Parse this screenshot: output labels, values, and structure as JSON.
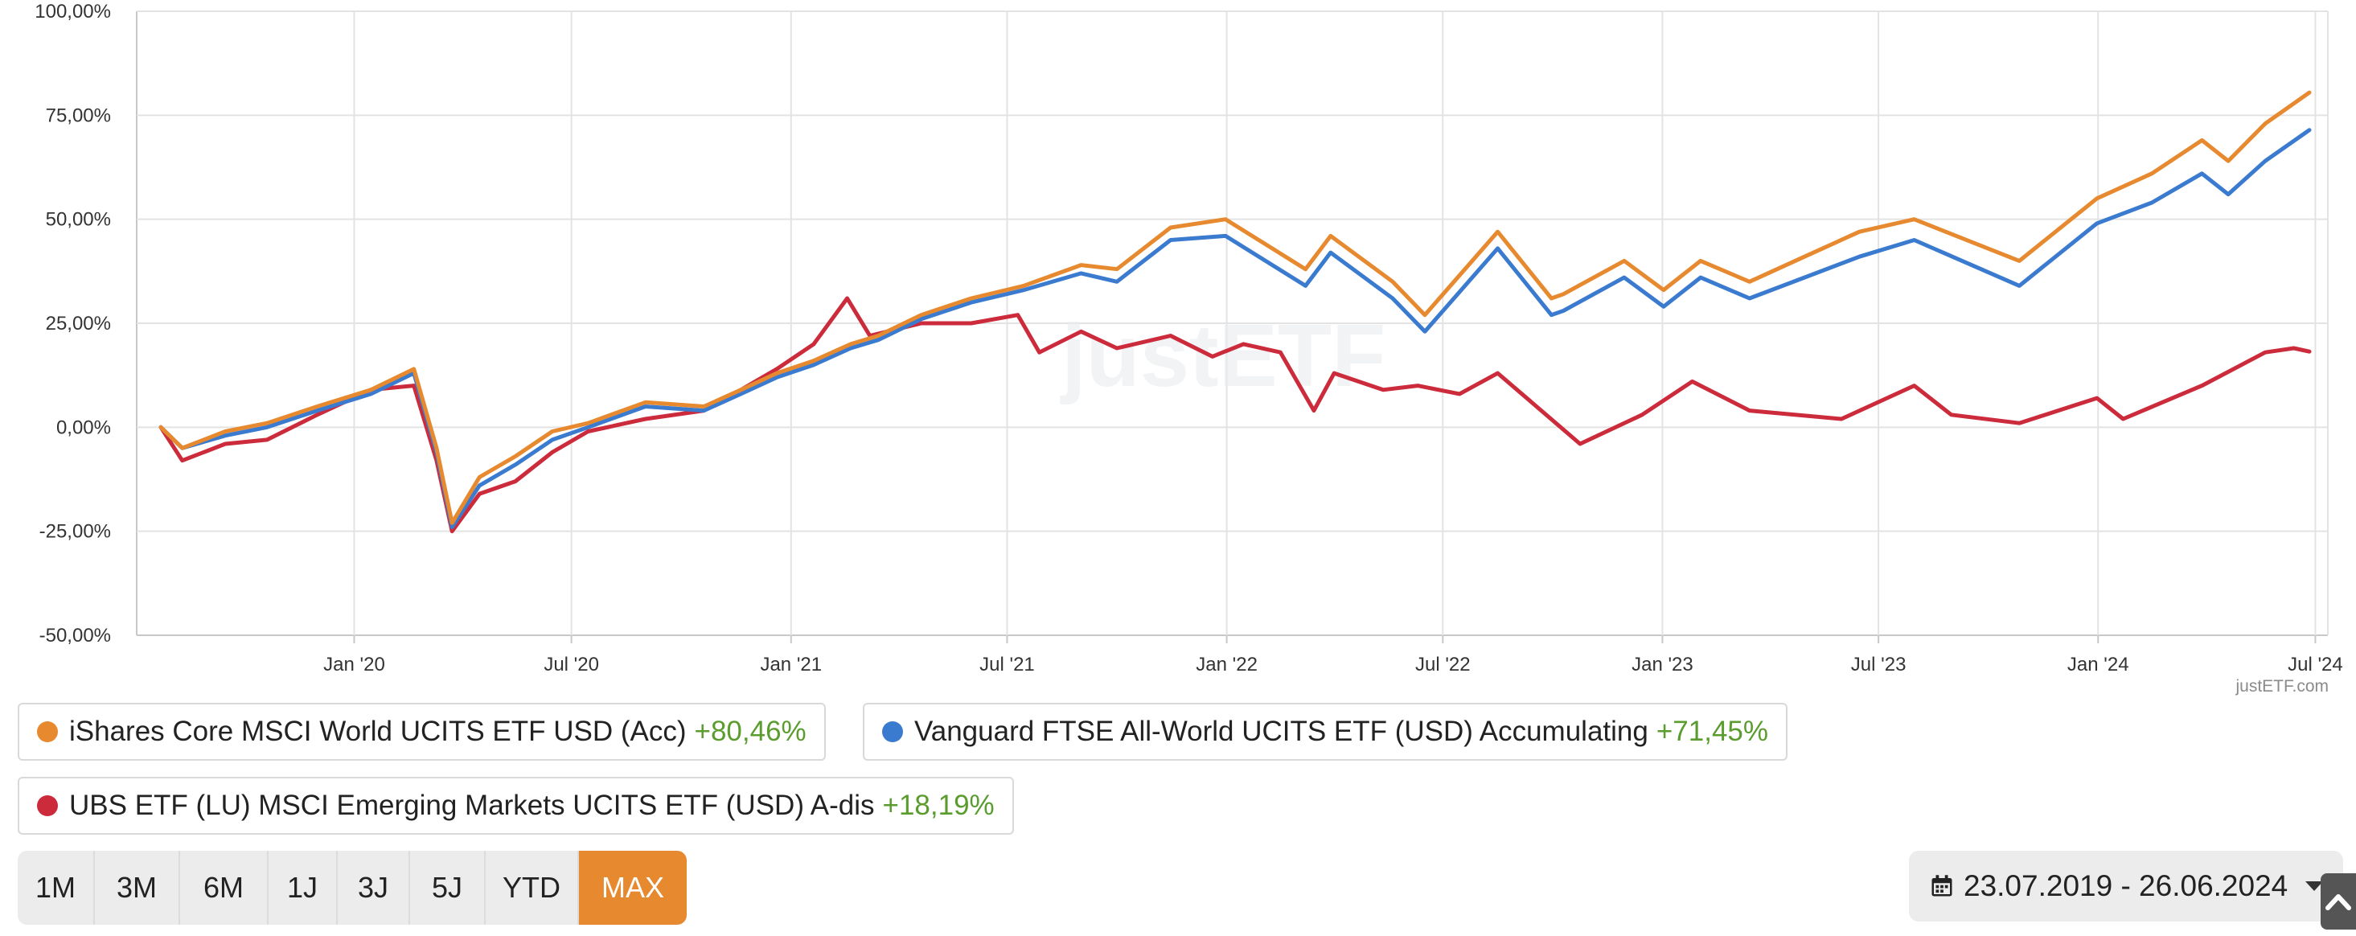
{
  "chart_data": {
    "type": "line",
    "x_range": [
      "2019-07-23",
      "2024-06-26"
    ],
    "ylim": [
      -50,
      100
    ],
    "y_ticks": [
      -50,
      -25,
      0,
      25,
      50,
      75,
      100
    ],
    "y_tick_labels": [
      "-50,00%",
      "-25,00%",
      "0,00%",
      "25,00%",
      "50,00%",
      "75,00%",
      "100,00%"
    ],
    "x_ticks": [
      {
        "date": "2020-01-01",
        "label": "Jan '20"
      },
      {
        "date": "2020-07-01",
        "label": "Jul '20"
      },
      {
        "date": "2021-01-01",
        "label": "Jan '21"
      },
      {
        "date": "2021-07-01",
        "label": "Jul '21"
      },
      {
        "date": "2022-01-01",
        "label": "Jan '22"
      },
      {
        "date": "2022-07-01",
        "label": "Jul '22"
      },
      {
        "date": "2023-01-01",
        "label": "Jan '23"
      },
      {
        "date": "2023-07-01",
        "label": "Jul '23"
      },
      {
        "date": "2024-01-01",
        "label": "Jan '24"
      },
      {
        "date": "2024-07-01",
        "label": "Jul '24"
      }
    ],
    "grid": true,
    "watermark": "justETF",
    "credit": "justETF.com",
    "series": [
      {
        "name": "iShares Core MSCI World UCITS ETF USD (Acc)",
        "color": "#e7892f",
        "performance": "+80,46%",
        "points": [
          [
            "2019-07-23",
            0
          ],
          [
            "2019-08-10",
            -5
          ],
          [
            "2019-09-15",
            -1
          ],
          [
            "2019-10-20",
            1
          ],
          [
            "2019-12-01",
            5
          ],
          [
            "2020-01-15",
            9
          ],
          [
            "2020-02-20",
            14
          ],
          [
            "2020-03-10",
            -5
          ],
          [
            "2020-03-23",
            -23
          ],
          [
            "2020-04-15",
            -12
          ],
          [
            "2020-05-15",
            -7
          ],
          [
            "2020-06-15",
            -1
          ],
          [
            "2020-07-15",
            1
          ],
          [
            "2020-09-01",
            6
          ],
          [
            "2020-10-20",
            5
          ],
          [
            "2020-11-20",
            9
          ],
          [
            "2020-12-20",
            13
          ],
          [
            "2021-01-20",
            16
          ],
          [
            "2021-02-20",
            20
          ],
          [
            "2021-03-15",
            22
          ],
          [
            "2021-04-20",
            27
          ],
          [
            "2021-06-01",
            31
          ],
          [
            "2021-07-15",
            34
          ],
          [
            "2021-09-01",
            39
          ],
          [
            "2021-10-01",
            38
          ],
          [
            "2021-11-15",
            48
          ],
          [
            "2021-12-31",
            50
          ],
          [
            "2022-03-08",
            38
          ],
          [
            "2022-03-29",
            46
          ],
          [
            "2022-05-20",
            35
          ],
          [
            "2022-06-16",
            27
          ],
          [
            "2022-08-16",
            47
          ],
          [
            "2022-09-30",
            31
          ],
          [
            "2022-10-10",
            32
          ],
          [
            "2022-11-30",
            40
          ],
          [
            "2023-01-02",
            33
          ],
          [
            "2023-02-02",
            40
          ],
          [
            "2023-03-15",
            35
          ],
          [
            "2023-04-30",
            41
          ],
          [
            "2023-06-15",
            47
          ],
          [
            "2023-07-31",
            50
          ],
          [
            "2023-10-27",
            40
          ],
          [
            "2023-12-31",
            55
          ],
          [
            "2024-02-15",
            61
          ],
          [
            "2024-03-28",
            69
          ],
          [
            "2024-04-19",
            64
          ],
          [
            "2024-05-20",
            73
          ],
          [
            "2024-06-26",
            80.46
          ]
        ]
      },
      {
        "name": "Vanguard FTSE All-World UCITS ETF (USD) Accumulating",
        "color": "#3a7bd0",
        "performance": "+71,45%",
        "points": [
          [
            "2019-07-23",
            0
          ],
          [
            "2019-08-10",
            -5
          ],
          [
            "2019-09-15",
            -2
          ],
          [
            "2019-10-20",
            0
          ],
          [
            "2019-12-01",
            4
          ],
          [
            "2020-01-15",
            8
          ],
          [
            "2020-02-20",
            13
          ],
          [
            "2020-03-10",
            -6
          ],
          [
            "2020-03-23",
            -24
          ],
          [
            "2020-04-15",
            -14
          ],
          [
            "2020-05-15",
            -9
          ],
          [
            "2020-06-15",
            -3
          ],
          [
            "2020-07-15",
            0
          ],
          [
            "2020-09-01",
            5
          ],
          [
            "2020-10-20",
            4
          ],
          [
            "2020-11-20",
            8
          ],
          [
            "2020-12-20",
            12
          ],
          [
            "2021-01-20",
            15
          ],
          [
            "2021-02-20",
            19
          ],
          [
            "2021-03-15",
            21
          ],
          [
            "2021-04-20",
            26
          ],
          [
            "2021-06-01",
            30
          ],
          [
            "2021-07-15",
            33
          ],
          [
            "2021-09-01",
            37
          ],
          [
            "2021-10-01",
            35
          ],
          [
            "2021-11-15",
            45
          ],
          [
            "2021-12-31",
            46
          ],
          [
            "2022-03-08",
            34
          ],
          [
            "2022-03-29",
            42
          ],
          [
            "2022-05-20",
            31
          ],
          [
            "2022-06-16",
            23
          ],
          [
            "2022-08-16",
            43
          ],
          [
            "2022-09-30",
            27
          ],
          [
            "2022-10-10",
            28
          ],
          [
            "2022-11-30",
            36
          ],
          [
            "2023-01-02",
            29
          ],
          [
            "2023-02-02",
            36
          ],
          [
            "2023-03-15",
            31
          ],
          [
            "2023-04-30",
            36
          ],
          [
            "2023-06-15",
            41
          ],
          [
            "2023-07-31",
            45
          ],
          [
            "2023-10-27",
            34
          ],
          [
            "2023-12-31",
            49
          ],
          [
            "2024-02-15",
            54
          ],
          [
            "2024-03-28",
            61
          ],
          [
            "2024-04-19",
            56
          ],
          [
            "2024-05-20",
            64
          ],
          [
            "2024-06-26",
            71.45
          ]
        ]
      },
      {
        "name": "UBS ETF (LU) MSCI Emerging Markets UCITS ETF (USD) A-dis",
        "color": "#cc2b3b",
        "performance": "+18,19%",
        "points": [
          [
            "2019-07-23",
            0
          ],
          [
            "2019-08-10",
            -8
          ],
          [
            "2019-09-15",
            -4
          ],
          [
            "2019-10-20",
            -3
          ],
          [
            "2019-12-01",
            3
          ],
          [
            "2020-01-15",
            9
          ],
          [
            "2020-02-20",
            10
          ],
          [
            "2020-03-10",
            -8
          ],
          [
            "2020-03-23",
            -25
          ],
          [
            "2020-04-15",
            -16
          ],
          [
            "2020-05-15",
            -13
          ],
          [
            "2020-06-15",
            -6
          ],
          [
            "2020-07-15",
            -1
          ],
          [
            "2020-09-01",
            2
          ],
          [
            "2020-10-20",
            4
          ],
          [
            "2020-11-20",
            9
          ],
          [
            "2020-12-20",
            14
          ],
          [
            "2021-01-20",
            20
          ],
          [
            "2021-02-17",
            31
          ],
          [
            "2021-03-08",
            22
          ],
          [
            "2021-04-20",
            25
          ],
          [
            "2021-06-01",
            25
          ],
          [
            "2021-07-10",
            27
          ],
          [
            "2021-07-28",
            18
          ],
          [
            "2021-09-01",
            23
          ],
          [
            "2021-10-01",
            19
          ],
          [
            "2021-11-15",
            22
          ],
          [
            "2021-12-20",
            17
          ],
          [
            "2022-01-15",
            20
          ],
          [
            "2022-02-15",
            18
          ],
          [
            "2022-03-15",
            4
          ],
          [
            "2022-04-01",
            13
          ],
          [
            "2022-05-12",
            9
          ],
          [
            "2022-06-10",
            10
          ],
          [
            "2022-07-15",
            8
          ],
          [
            "2022-08-16",
            13
          ],
          [
            "2022-10-24",
            -4
          ],
          [
            "2022-12-15",
            3
          ],
          [
            "2023-01-26",
            11
          ],
          [
            "2023-03-15",
            4
          ],
          [
            "2023-05-31",
            2
          ],
          [
            "2023-07-31",
            10
          ],
          [
            "2023-08-31",
            3
          ],
          [
            "2023-10-27",
            1
          ],
          [
            "2023-12-31",
            7
          ],
          [
            "2024-01-22",
            2
          ],
          [
            "2024-03-28",
            10
          ],
          [
            "2024-05-20",
            18
          ],
          [
            "2024-06-13",
            19
          ],
          [
            "2024-06-26",
            18.19
          ]
        ]
      }
    ]
  },
  "range_buttons": [
    "1M",
    "3M",
    "6M",
    "1J",
    "3J",
    "5J",
    "YTD",
    "MAX"
  ],
  "active_range": "MAX",
  "date_range_label": "23.07.2019 - 26.06.2024"
}
